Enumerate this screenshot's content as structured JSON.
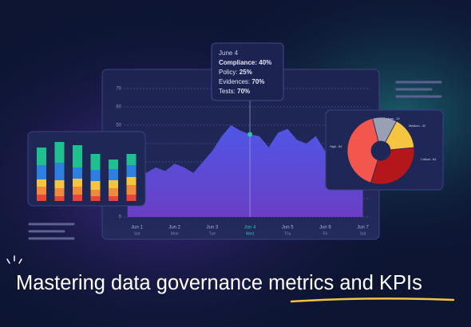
{
  "headline": {
    "lead": "Mastering data governance ",
    "highlight": "metrics and KPIs"
  },
  "chart_data": [
    {
      "type": "area",
      "color": "#5a4bd8",
      "x": [
        0.75,
        1,
        1.25,
        1.5,
        1.75,
        2,
        2.25,
        2.5,
        2.75,
        3,
        3.25,
        3.5,
        3.75,
        4,
        4.25,
        4.5,
        4.75,
        5,
        5.25,
        5.5,
        5.75,
        6,
        6.25,
        6.5,
        6.75,
        7
      ],
      "values": [
        26,
        28,
        24,
        27,
        25,
        29,
        27,
        24,
        30,
        36,
        44,
        50,
        47,
        45,
        44,
        38,
        46,
        48,
        42,
        40,
        44,
        36,
        30,
        27,
        25,
        23
      ],
      "xlim": [
        0.65,
        7.2
      ],
      "ylim": [
        0,
        80
      ],
      "yticks": [
        0,
        10,
        20,
        30,
        40,
        50,
        60,
        70
      ],
      "grid": true,
      "xticks": [
        {
          "value": 1,
          "label": "Jun 1"
        },
        {
          "value": 2,
          "label": "Jun 2"
        },
        {
          "value": 3,
          "label": "Jun 3"
        },
        {
          "value": 4,
          "label": "Jun 4"
        },
        {
          "value": 5,
          "label": "Jun 5"
        },
        {
          "value": 6,
          "label": "Jun 6"
        },
        {
          "value": 7,
          "label": "Jun 7"
        }
      ],
      "xtick_days": [
        "Sat",
        "Mon",
        "Tue",
        "Wed",
        "Thu",
        "Fri",
        "Sat"
      ],
      "highlight_x": 4,
      "highlight_color": "#2ec4a6",
      "tooltip": {
        "title": "June 4",
        "lines": [
          {
            "label": "Compliance:",
            "value": "40%"
          },
          {
            "label": "Policy:",
            "value": "25%"
          },
          {
            "label": "Evidences:",
            "value": "70%"
          },
          {
            "label": "Tests:",
            "value": "70%"
          }
        ]
      }
    },
    {
      "type": "stacked_bar",
      "categories": [
        null,
        null,
        null,
        null,
        null,
        null
      ],
      "ylim": [
        0,
        80
      ],
      "series": [
        {
          "color": "#e8453c",
          "values": [
            8,
            6,
            8,
            6,
            6,
            8
          ]
        },
        {
          "color": "#f08a3c",
          "values": [
            10,
            10,
            10,
            8,
            10,
            12
          ]
        },
        {
          "color": "#f5c542",
          "values": [
            9,
            10,
            10,
            11,
            10,
            10
          ]
        },
        {
          "color": "#2d7fe0",
          "values": [
            18,
            22,
            14,
            14,
            14,
            15
          ]
        },
        {
          "color": "#1fbf8f",
          "values": [
            22,
            26,
            28,
            20,
            12,
            14
          ]
        }
      ]
    },
    {
      "type": "pie",
      "labels": [
        "Low - 24",
        "Medium - 32",
        "Critical - 64",
        "High - 84"
      ],
      "values": [
        24,
        32,
        64,
        84
      ],
      "colors": [
        "#9aa0b4",
        "#f5c542",
        "#b3171c",
        "#f2564d"
      ]
    }
  ]
}
